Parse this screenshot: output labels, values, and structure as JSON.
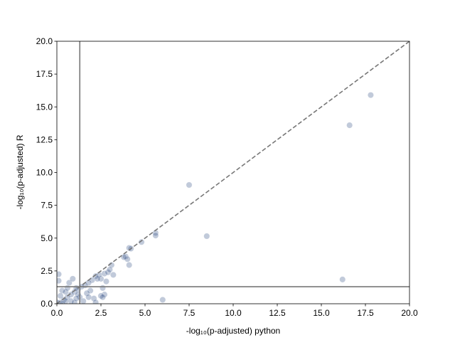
{
  "chart_data": {
    "type": "scatter",
    "x_label": "-log₁₀(p-adjusted) python",
    "y_label": "-log₁₀(p-adjusted) R",
    "x": [
      17.8,
      16.6,
      7.5,
      8.5,
      5.6,
      5.6,
      4.8,
      4.1,
      4.2,
      3.9,
      4.0,
      3.8,
      4.1,
      3.1,
      3.2,
      16.2,
      6.0,
      2.7,
      2.5,
      2.6,
      2.5,
      2.4,
      2.7,
      2.2,
      2.0,
      1.8,
      1.6,
      1.4,
      1.2,
      1.0,
      0.8,
      0.6,
      0.4,
      0.2,
      0.1,
      0.1,
      0.3,
      0.5,
      0.7,
      0.9,
      1.1,
      1.3,
      1.5,
      1.9,
      2.1,
      2.2,
      1.7,
      0.2,
      0.0,
      0.3,
      0.8,
      1.0,
      0.5,
      1.2,
      2.9,
      3.0,
      2.3,
      1.8,
      0.6,
      2.8,
      2.6,
      1.1
    ],
    "values": [
      15.9,
      13.6,
      9.05,
      5.15,
      5.4,
      5.2,
      4.7,
      4.25,
      4.2,
      3.6,
      3.4,
      3.55,
      2.95,
      2.95,
      2.2,
      1.85,
      0.3,
      0.7,
      0.6,
      1.2,
      1.9,
      2.2,
      2.3,
      2.1,
      1.8,
      1.6,
      1.4,
      1.3,
      1.1,
      0.9,
      0.7,
      0.5,
      0.3,
      0.1,
      2.25,
      1.75,
      1.0,
      0.9,
      1.6,
      1.9,
      1.2,
      0.5,
      0.2,
      1.0,
      0.4,
      0.1,
      0.8,
      0.6,
      0.1,
      0.0,
      0.2,
      0.1,
      0.2,
      0.7,
      2.4,
      2.6,
      1.9,
      0.5,
      1.2,
      1.7,
      0.5,
      0.4
    ],
    "color": "#1f3f7a",
    "xlim": [
      0,
      20
    ],
    "ylim": [
      0,
      20
    ],
    "xticks": [
      {
        "value": 0,
        "label": "0.0"
      },
      {
        "value": 2.5,
        "label": "2.5"
      },
      {
        "value": 5,
        "label": "5.0"
      },
      {
        "value": 7.5,
        "label": "7.5"
      },
      {
        "value": 10,
        "label": "10.0"
      },
      {
        "value": 12.5,
        "label": "12.5"
      },
      {
        "value": 15,
        "label": "15.0"
      },
      {
        "value": 17.5,
        "label": "17.5"
      },
      {
        "value": 20,
        "label": "20.0"
      }
    ],
    "yticks": [
      {
        "value": 0,
        "label": "0.0"
      },
      {
        "value": 2.5,
        "label": "2.5"
      },
      {
        "value": 5,
        "label": "5.0"
      },
      {
        "value": 7.5,
        "label": "7.5"
      },
      {
        "value": 10,
        "label": "10.0"
      },
      {
        "value": 12.5,
        "label": "12.5"
      },
      {
        "value": 15,
        "label": "15.0"
      },
      {
        "value": 17.5,
        "label": "17.5"
      },
      {
        "value": 20,
        "label": "20.0"
      }
    ],
    "hlines": [
      1.3
    ],
    "vlines": [
      1.3
    ],
    "diagonal": true
  }
}
